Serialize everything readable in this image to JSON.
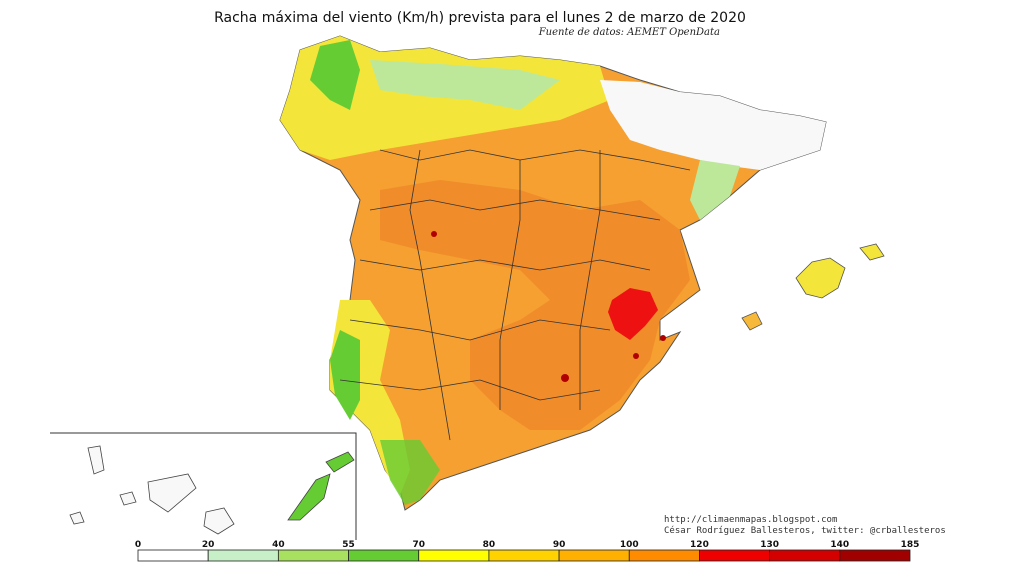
{
  "header": {
    "title": "Racha máxima del viento (Km/h) prevista para el lunes 2 de marzo de 2020",
    "source": "Fuente de datos: AEMET OpenData"
  },
  "credits": {
    "blog": "http://climaenmapas.blogspot.com",
    "author": "César Rodríguez Ballesteros, twitter: @crballesteros"
  },
  "legend": {
    "ticks": [
      "0",
      "20",
      "40",
      "55",
      "70",
      "80",
      "90",
      "100",
      "120",
      "130",
      "140",
      "185"
    ],
    "colors": [
      "#ffffff",
      "#c8f0c8",
      "#a8e060",
      "#66cc33",
      "#ffff00",
      "#ffd200",
      "#ffb000",
      "#ff8c00",
      "#ee0000",
      "#d40000",
      "#a00000"
    ]
  },
  "map_colors": {
    "strong_orange": "#f08a2a",
    "orange": "#f5a030",
    "light_orange": "#f7b93a",
    "yellow": "#f3e53a",
    "green": "#66cc33",
    "light_green": "#bde89a",
    "white": "#f8f8f8",
    "red": "#ee1111",
    "dark_red": "#b00000",
    "border": "#333333"
  }
}
